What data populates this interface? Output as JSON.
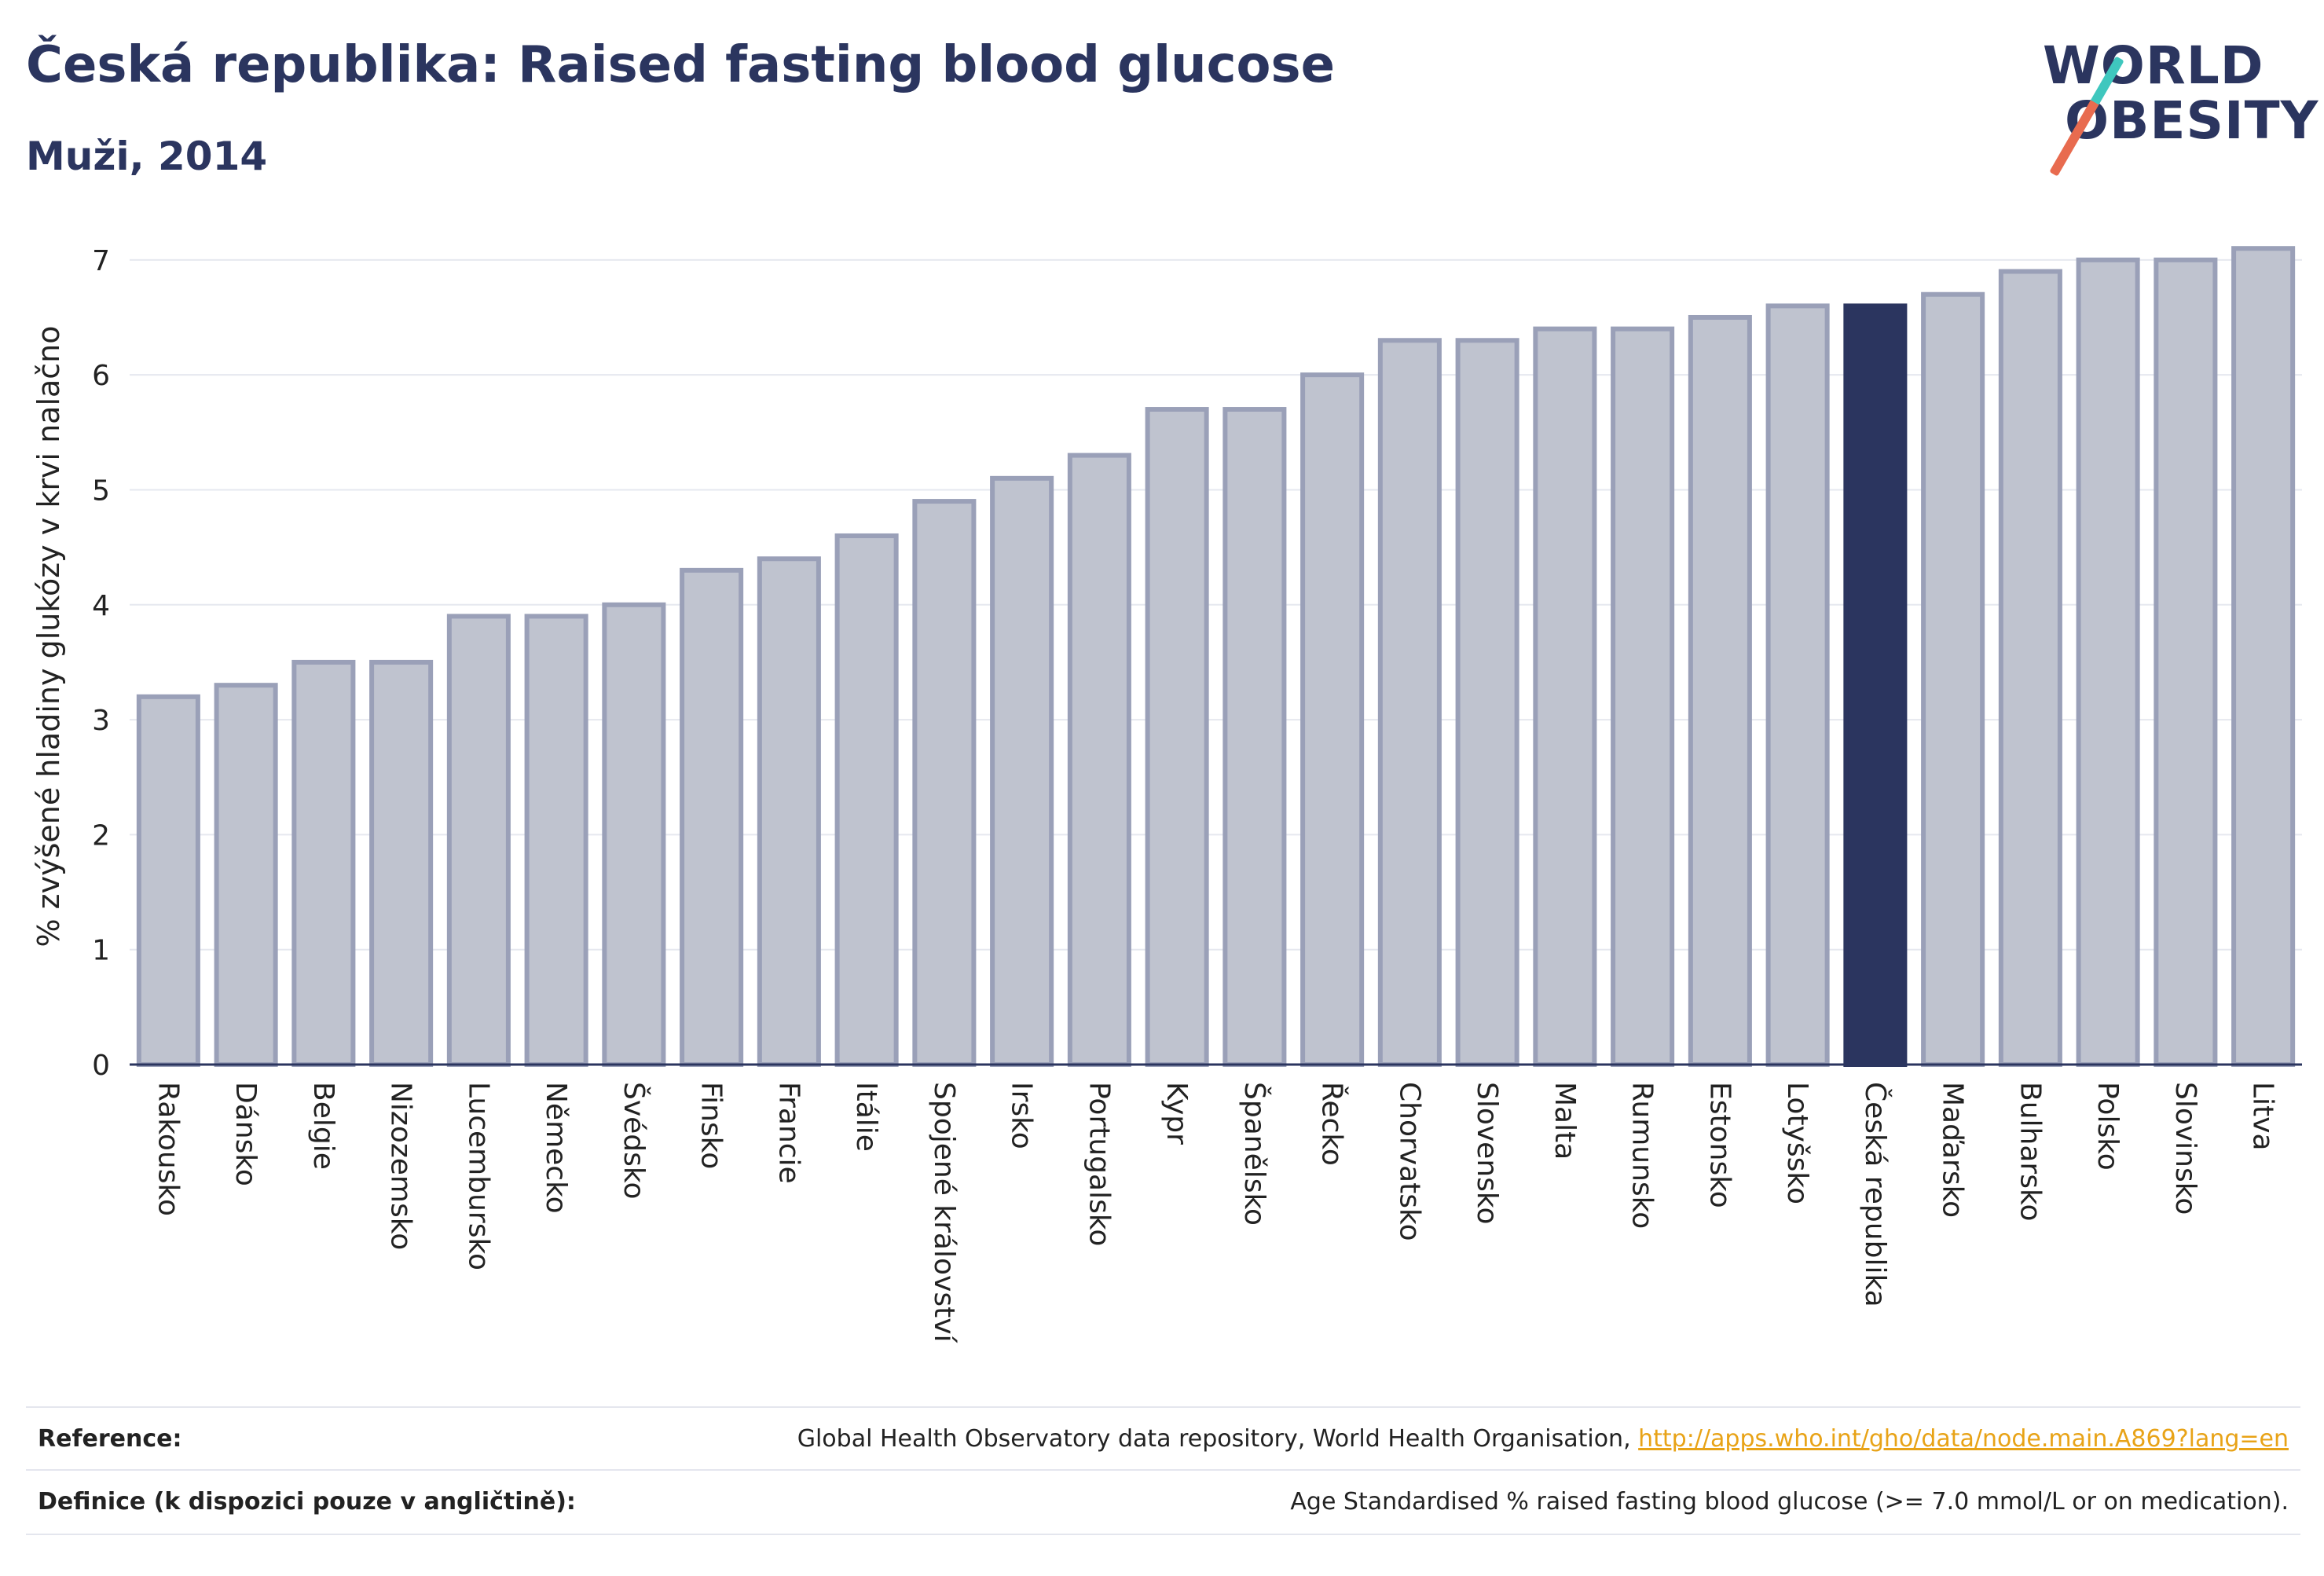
{
  "header": {
    "title": "Česká republika: Raised fasting blood glucose",
    "subtitle": "Muži, 2014"
  },
  "logo": {
    "line1": "WORLD",
    "line2": "OBESITY"
  },
  "colors": {
    "highlight_bar": "#2b355f",
    "bar_fill": "#bfc3cf",
    "bar_stroke": "#9aa0b8",
    "text": "#2b355f"
  },
  "chart_data": {
    "type": "bar",
    "title": "",
    "xlabel": "",
    "ylabel": "% zvýšené hladiny glukózy v krvi nalačno",
    "ylim": [
      0,
      7.45
    ],
    "yticks": [
      0,
      1,
      2,
      3,
      4,
      5,
      6,
      7
    ],
    "grid": true,
    "highlight": "Česká republika",
    "categories": [
      "Rakousko",
      "Dánsko",
      "Belgie",
      "Nizozemsko",
      "Lucembursko",
      "Německo",
      "Švédsko",
      "Finsko",
      "Francie",
      "Itálie",
      "Spojené království",
      "Irsko",
      "Portugalsko",
      "Kypr",
      "Španělsko",
      "Řecko",
      "Chorvatsko",
      "Slovensko",
      "Malta",
      "Rumunsko",
      "Estonsko",
      "Lotyšsko",
      "Česká republika",
      "Maďarsko",
      "Bulharsko",
      "Polsko",
      "Slovinsko",
      "Litva"
    ],
    "values": [
      3.2,
      3.3,
      3.5,
      3.5,
      3.9,
      3.9,
      4.0,
      4.3,
      4.4,
      4.6,
      4.9,
      5.1,
      5.3,
      5.7,
      5.7,
      6.0,
      6.3,
      6.3,
      6.4,
      6.4,
      6.5,
      6.6,
      6.6,
      6.7,
      6.9,
      7.0,
      7.0,
      7.1
    ]
  },
  "footer": {
    "reference_label": "Reference:",
    "reference_text": "Global Health Observatory data repository, World Health Organisation, ",
    "reference_link": "http://apps.who.int/gho/data/node.main.A869?lang=en",
    "definition_label": "Definice (k dispozici pouze v angličtině):",
    "definition_text": "Age Standardised % raised fasting blood glucose (>= 7.0 mmol/L or on medication)."
  }
}
